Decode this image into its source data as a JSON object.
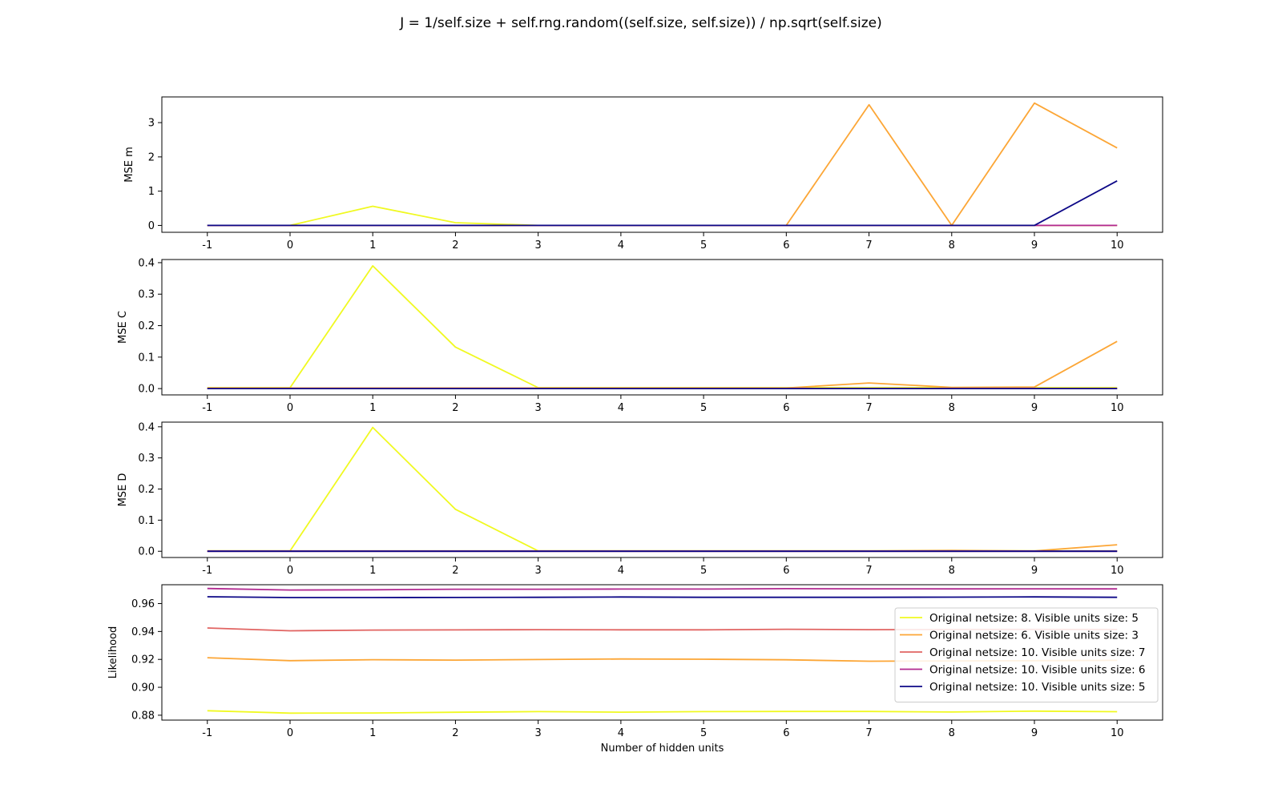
{
  "figure": {
    "title": "J = 1/self.size + self.rng.random((self.size, self.size)) / np.sqrt(self.size)"
  },
  "chart_data": [
    {
      "type": "line",
      "ylabel": "MSE m",
      "xlabel": "",
      "x": [
        -1,
        0,
        1,
        2,
        3,
        4,
        5,
        6,
        7,
        8,
        9,
        10
      ],
      "xticks": [
        "-1",
        "0",
        "1",
        "2",
        "3",
        "4",
        "5",
        "6",
        "7",
        "8",
        "9",
        "10"
      ],
      "ylim": [
        -0.2,
        3.75
      ],
      "yticks": [
        "0",
        "1",
        "2",
        "3"
      ],
      "ytick_values": [
        0,
        1,
        2,
        3
      ],
      "series": [
        {
          "color": "#f0f921",
          "values": [
            0,
            0,
            0.56,
            0.08,
            0,
            0,
            0,
            0,
            0,
            0,
            0,
            0
          ]
        },
        {
          "color": "#fca636",
          "values": [
            0,
            0,
            0,
            0,
            0,
            0,
            0,
            0,
            3.52,
            0,
            3.57,
            2.26
          ]
        },
        {
          "color": "#e16462",
          "values": [
            0,
            0,
            0,
            0,
            0,
            0,
            0,
            0,
            0,
            0,
            0,
            0
          ]
        },
        {
          "color": "#b12a90",
          "values": [
            0,
            0,
            0,
            0,
            0,
            0,
            0,
            0,
            0,
            0,
            0,
            0
          ]
        },
        {
          "color": "#0d0887",
          "values": [
            0,
            0,
            0,
            0,
            0,
            0,
            0,
            0,
            0,
            0,
            0,
            1.3
          ]
        }
      ]
    },
    {
      "type": "line",
      "ylabel": "MSE C",
      "xlabel": "",
      "x": [
        -1,
        0,
        1,
        2,
        3,
        4,
        5,
        6,
        7,
        8,
        9,
        10
      ],
      "xticks": [
        "-1",
        "0",
        "1",
        "2",
        "3",
        "4",
        "5",
        "6",
        "7",
        "8",
        "9",
        "10"
      ],
      "ylim": [
        -0.02,
        0.41
      ],
      "yticks": [
        "0.0",
        "0.1",
        "0.2",
        "0.3",
        "0.4"
      ],
      "ytick_values": [
        0,
        0.1,
        0.2,
        0.3,
        0.4
      ],
      "series": [
        {
          "color": "#f0f921",
          "values": [
            0.003,
            0.003,
            0.39,
            0.132,
            0.003,
            0.003,
            0.003,
            0.003,
            0.003,
            0.003,
            0.003,
            0.003
          ]
        },
        {
          "color": "#fca636",
          "values": [
            0.002,
            0.002,
            0.002,
            0.002,
            0.002,
            0.002,
            0.002,
            0.002,
            0.018,
            0.004,
            0.005,
            0.15
          ]
        },
        {
          "color": "#e16462",
          "values": [
            0,
            0,
            0,
            0,
            0,
            0,
            0,
            0,
            0,
            0,
            0,
            0
          ]
        },
        {
          "color": "#b12a90",
          "values": [
            0,
            0,
            0,
            0,
            0,
            0,
            0,
            0,
            0,
            0,
            0,
            0
          ]
        },
        {
          "color": "#0d0887",
          "values": [
            0,
            0,
            0,
            0,
            0,
            0,
            0,
            0,
            0,
            0,
            0,
            0
          ]
        }
      ]
    },
    {
      "type": "line",
      "ylabel": "MSE D",
      "xlabel": "",
      "x": [
        -1,
        0,
        1,
        2,
        3,
        4,
        5,
        6,
        7,
        8,
        9,
        10
      ],
      "xticks": [
        "-1",
        "0",
        "1",
        "2",
        "3",
        "4",
        "5",
        "6",
        "7",
        "8",
        "9",
        "10"
      ],
      "ylim": [
        -0.02,
        0.415
      ],
      "yticks": [
        "0.0",
        "0.1",
        "0.2",
        "0.3",
        "0.4"
      ],
      "ytick_values": [
        0,
        0.1,
        0.2,
        0.3,
        0.4
      ],
      "series": [
        {
          "color": "#f0f921",
          "values": [
            0.001,
            0.001,
            0.398,
            0.135,
            0.001,
            0.001,
            0.001,
            0.001,
            0.001,
            0.001,
            0.001,
            0.001
          ]
        },
        {
          "color": "#fca636",
          "values": [
            0.001,
            0.001,
            0.001,
            0.001,
            0.001,
            0.001,
            0.001,
            0.001,
            0.001,
            0.003,
            0.001,
            0.021
          ]
        },
        {
          "color": "#e16462",
          "values": [
            0,
            0,
            0,
            0,
            0,
            0,
            0,
            0,
            0,
            0,
            0,
            0
          ]
        },
        {
          "color": "#b12a90",
          "values": [
            0,
            0,
            0,
            0,
            0,
            0,
            0,
            0,
            0,
            0,
            0,
            0
          ]
        },
        {
          "color": "#0d0887",
          "values": [
            0,
            0,
            0,
            0,
            0,
            0,
            0,
            0,
            0,
            0,
            0,
            0
          ]
        }
      ]
    },
    {
      "type": "line",
      "ylabel": "Likelihood",
      "xlabel": "Number of hidden units",
      "x": [
        -1,
        0,
        1,
        2,
        3,
        4,
        5,
        6,
        7,
        8,
        9,
        10
      ],
      "xticks": [
        "-1",
        "0",
        "1",
        "2",
        "3",
        "4",
        "5",
        "6",
        "7",
        "8",
        "9",
        "10"
      ],
      "ylim": [
        0.8765,
        0.9735
      ],
      "yticks": [
        "0.88",
        "0.90",
        "0.92",
        "0.94",
        "0.96"
      ],
      "ytick_values": [
        0.88,
        0.9,
        0.92,
        0.94,
        0.96
      ],
      "legend_position": "right",
      "series": [
        {
          "name": "Original netsize: 8. Visible units size: 5",
          "color": "#f0f921",
          "values": [
            0.8832,
            0.8815,
            0.8816,
            0.8821,
            0.8826,
            0.8822,
            0.8826,
            0.8827,
            0.8827,
            0.8823,
            0.8829,
            0.8825
          ]
        },
        {
          "name": "Original netsize: 6. Visible units size: 3",
          "color": "#fca636",
          "values": [
            0.9212,
            0.9191,
            0.9198,
            0.9195,
            0.9199,
            0.9203,
            0.9201,
            0.9197,
            0.9187,
            0.9189,
            0.9191,
            0.9193
          ]
        },
        {
          "name": "Original netsize: 10. Visible units size: 7",
          "color": "#e16462",
          "values": [
            0.9425,
            0.9405,
            0.941,
            0.9411,
            0.9413,
            0.9412,
            0.9412,
            0.9416,
            0.9413,
            0.9414,
            0.9415,
            0.9414
          ]
        },
        {
          "name": "Original netsize: 10. Visible units size: 6",
          "color": "#b12a90",
          "values": [
            0.9708,
            0.9697,
            0.9699,
            0.9703,
            0.9703,
            0.9704,
            0.9704,
            0.9707,
            0.9706,
            0.9705,
            0.9706,
            0.9705
          ]
        },
        {
          "name": "Original netsize: 10. Visible units size: 5",
          "color": "#0d0887",
          "values": [
            0.9649,
            0.9643,
            0.9643,
            0.9644,
            0.9645,
            0.9647,
            0.9645,
            0.9645,
            0.9645,
            0.9646,
            0.9648,
            0.9645
          ]
        }
      ]
    }
  ]
}
